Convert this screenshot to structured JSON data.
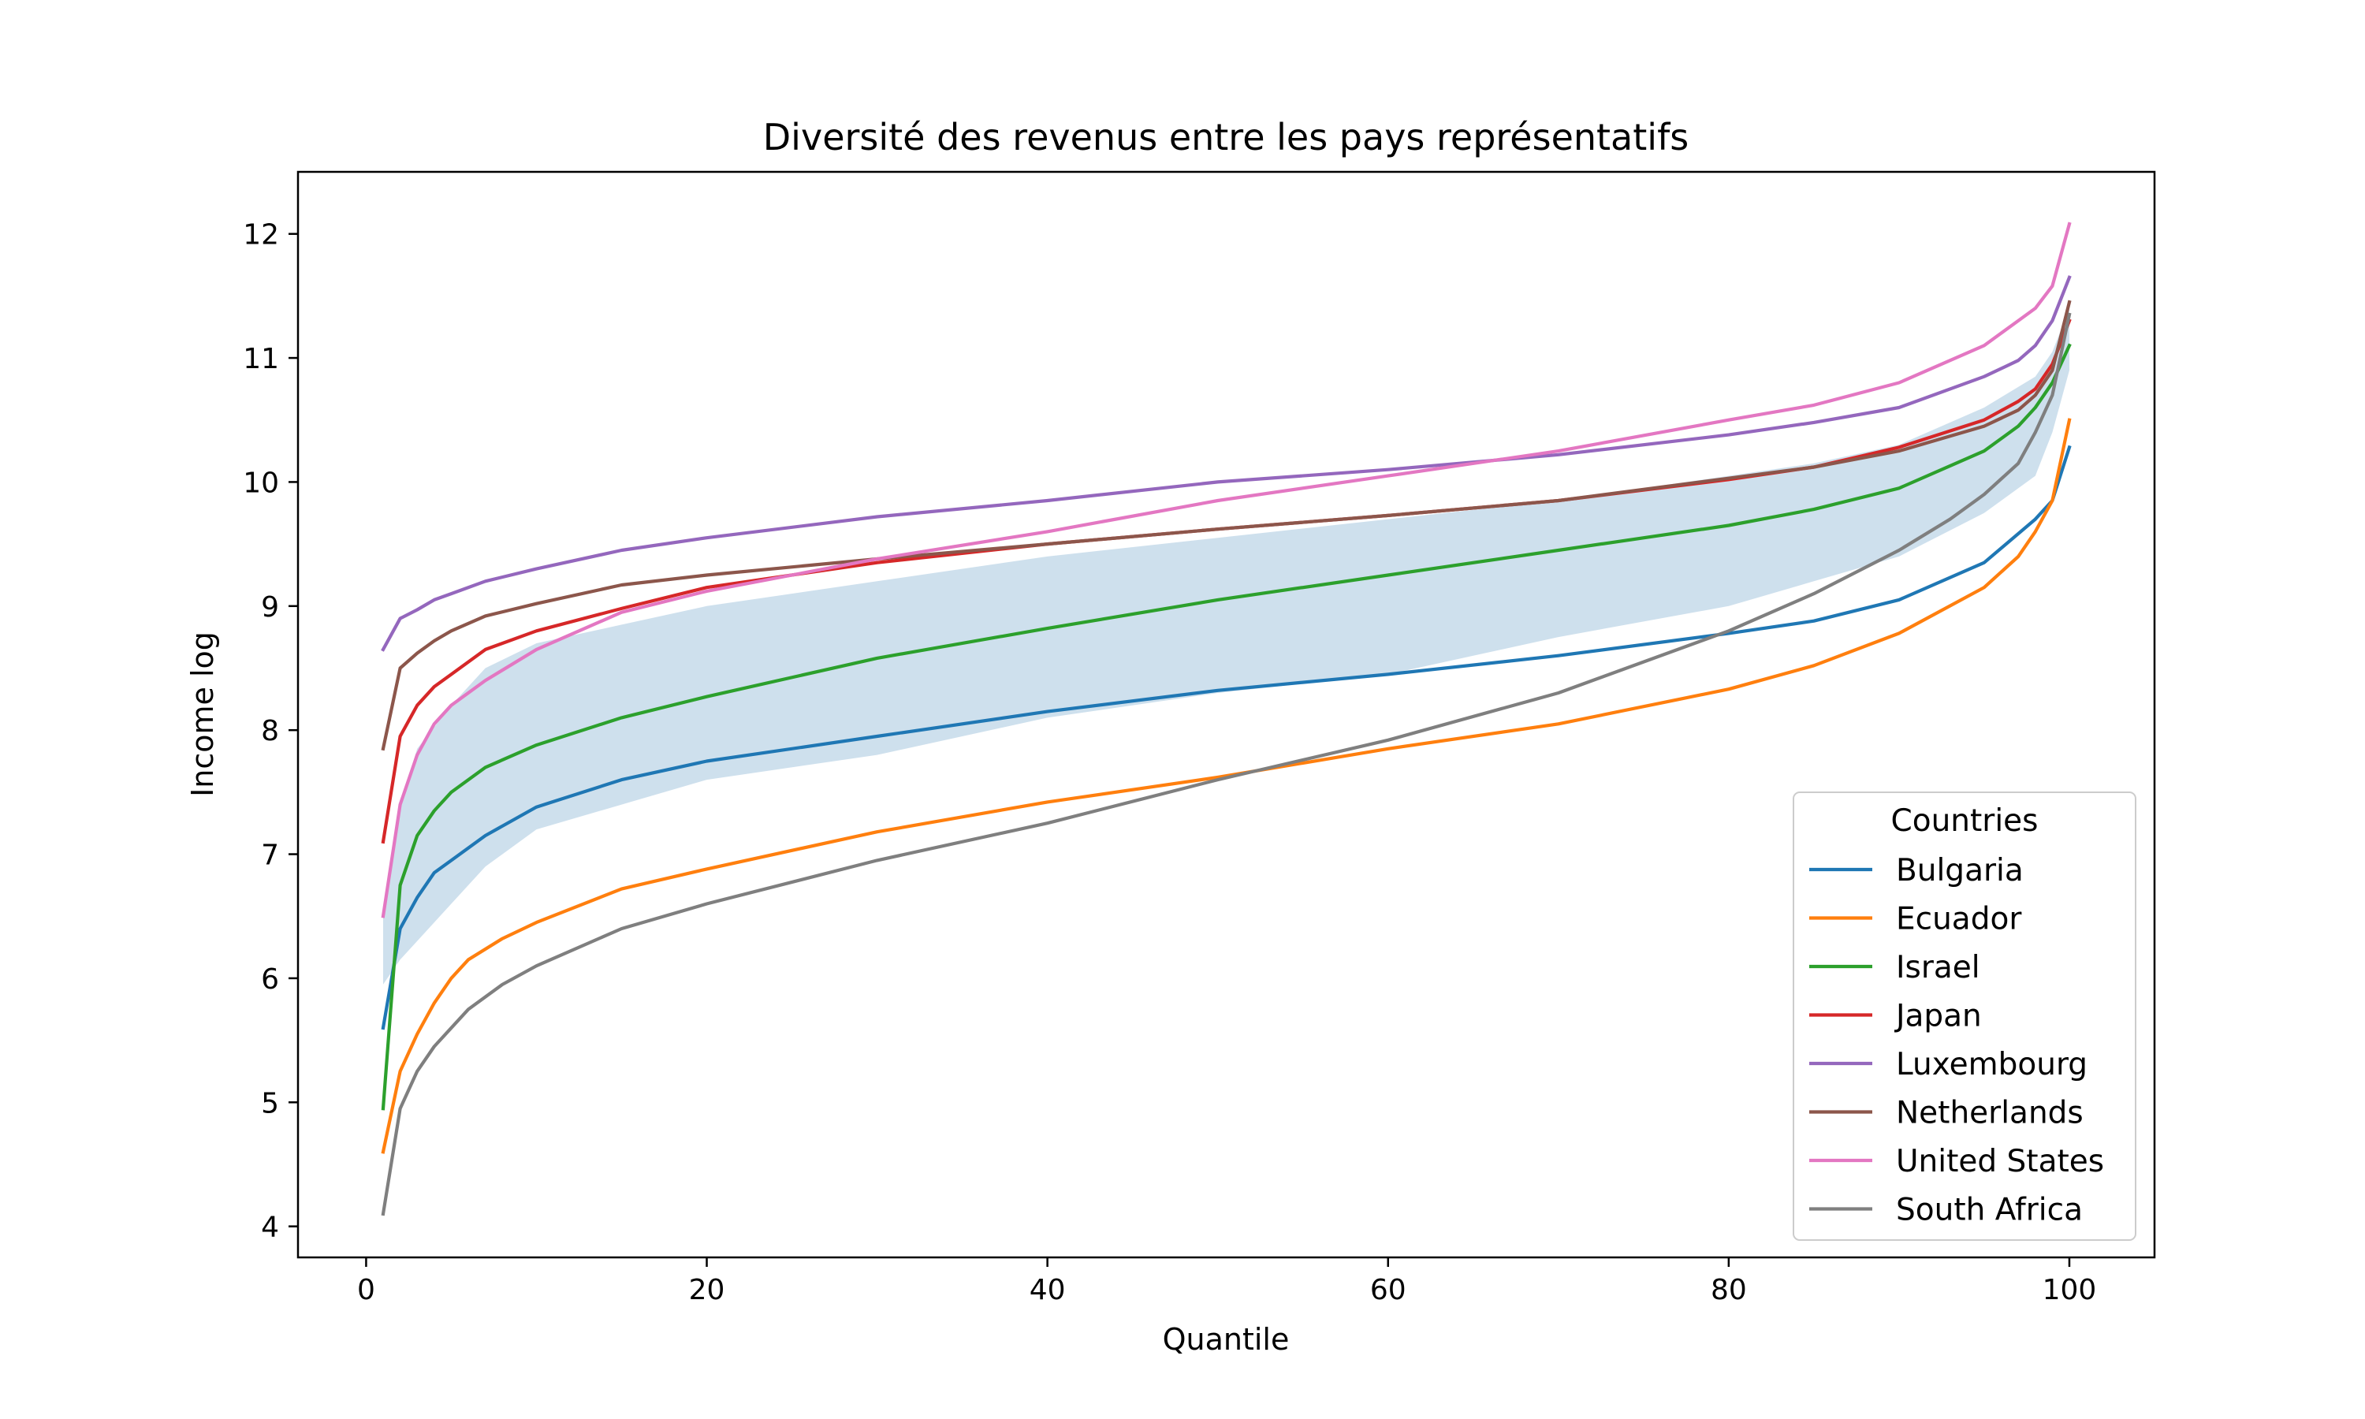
{
  "chart_data": {
    "type": "line",
    "title": "Diversité des revenus entre les pays représentatifs",
    "xlabel": "Quantile",
    "ylabel": "Income log",
    "xlim": [
      -4,
      105
    ],
    "ylim": [
      3.75,
      12.5
    ],
    "xticks": [
      0,
      20,
      40,
      60,
      80,
      100
    ],
    "yticks": [
      4,
      5,
      6,
      7,
      8,
      9,
      10,
      11,
      12
    ],
    "grid": false,
    "legend": {
      "title": "Countries",
      "placement": "lower-right"
    },
    "band": {
      "color": "#c6dbea",
      "x": [
        1,
        2,
        3,
        5,
        7,
        10,
        15,
        20,
        30,
        40,
        50,
        60,
        70,
        80,
        85,
        90,
        95,
        98,
        99,
        100
      ],
      "upper": [
        6.5,
        7.4,
        7.85,
        8.2,
        8.5,
        8.7,
        8.85,
        9.0,
        9.2,
        9.4,
        9.55,
        9.7,
        9.85,
        10.05,
        10.15,
        10.3,
        10.6,
        10.85,
        11.05,
        11.4
      ],
      "lower": [
        5.95,
        6.15,
        6.3,
        6.6,
        6.9,
        7.2,
        7.4,
        7.6,
        7.8,
        8.1,
        8.3,
        8.45,
        8.75,
        9.0,
        9.2,
        9.4,
        9.75,
        10.05,
        10.4,
        10.9
      ]
    },
    "series": [
      {
        "name": "Bulgaria",
        "color": "#1f77b4",
        "x": [
          1,
          2,
          3,
          4,
          5,
          7,
          10,
          15,
          20,
          30,
          40,
          50,
          60,
          70,
          80,
          85,
          90,
          95,
          98,
          99,
          100
        ],
        "y": [
          5.6,
          6.4,
          6.65,
          6.85,
          6.95,
          7.15,
          7.38,
          7.6,
          7.75,
          7.95,
          8.15,
          8.32,
          8.45,
          8.6,
          8.78,
          8.88,
          9.05,
          9.35,
          9.7,
          9.85,
          10.28
        ]
      },
      {
        "name": "Ecuador",
        "color": "#ff7f0e",
        "x": [
          1,
          2,
          3,
          4,
          5,
          6,
          8,
          10,
          15,
          20,
          30,
          40,
          50,
          60,
          70,
          80,
          85,
          90,
          95,
          97,
          98,
          99,
          100
        ],
        "y": [
          4.6,
          5.25,
          5.55,
          5.8,
          6.0,
          6.15,
          6.32,
          6.45,
          6.72,
          6.88,
          7.18,
          7.42,
          7.62,
          7.85,
          8.05,
          8.33,
          8.52,
          8.78,
          9.15,
          9.4,
          9.6,
          9.85,
          10.5
        ]
      },
      {
        "name": "Israel",
        "color": "#2ca02c",
        "x": [
          1,
          2,
          3,
          4,
          5,
          7,
          10,
          15,
          20,
          30,
          40,
          50,
          60,
          70,
          80,
          85,
          90,
          95,
          97,
          98,
          99,
          100
        ],
        "y": [
          4.95,
          6.75,
          7.15,
          7.35,
          7.5,
          7.7,
          7.88,
          8.1,
          8.27,
          8.58,
          8.82,
          9.05,
          9.25,
          9.45,
          9.65,
          9.78,
          9.95,
          10.25,
          10.45,
          10.6,
          10.8,
          11.1
        ]
      },
      {
        "name": "Japan",
        "color": "#d62728",
        "x": [
          1,
          2,
          3,
          4,
          5,
          7,
          10,
          15,
          20,
          30,
          40,
          50,
          60,
          70,
          80,
          85,
          90,
          95,
          97,
          98,
          99,
          100
        ],
        "y": [
          7.1,
          7.95,
          8.2,
          8.35,
          8.45,
          8.65,
          8.8,
          8.98,
          9.15,
          9.35,
          9.5,
          9.62,
          9.73,
          9.85,
          10.02,
          10.12,
          10.28,
          10.5,
          10.65,
          10.75,
          10.95,
          11.3
        ]
      },
      {
        "name": "Luxembourg",
        "color": "#9467bd",
        "x": [
          1,
          2,
          3,
          4,
          5,
          7,
          10,
          15,
          20,
          30,
          40,
          50,
          60,
          70,
          80,
          85,
          90,
          95,
          97,
          98,
          99,
          100
        ],
        "y": [
          8.65,
          8.9,
          8.97,
          9.05,
          9.1,
          9.2,
          9.3,
          9.45,
          9.55,
          9.72,
          9.85,
          10.0,
          10.1,
          10.22,
          10.38,
          10.48,
          10.6,
          10.85,
          10.98,
          11.1,
          11.3,
          11.65
        ]
      },
      {
        "name": "Netherlands",
        "color": "#8c564b",
        "x": [
          1,
          2,
          3,
          4,
          5,
          7,
          10,
          15,
          20,
          30,
          40,
          50,
          60,
          70,
          80,
          85,
          90,
          95,
          97,
          98,
          99,
          100
        ],
        "y": [
          7.85,
          8.5,
          8.62,
          8.72,
          8.8,
          8.92,
          9.02,
          9.17,
          9.25,
          9.38,
          9.5,
          9.62,
          9.73,
          9.85,
          10.03,
          10.12,
          10.25,
          10.45,
          10.58,
          10.7,
          10.9,
          11.45
        ]
      },
      {
        "name": "United States",
        "color": "#e377c2",
        "x": [
          1,
          2,
          3,
          4,
          5,
          7,
          10,
          15,
          20,
          30,
          40,
          50,
          60,
          70,
          80,
          85,
          90,
          95,
          97,
          98,
          99,
          100
        ],
        "y": [
          6.5,
          7.4,
          7.8,
          8.05,
          8.2,
          8.4,
          8.65,
          8.95,
          9.12,
          9.38,
          9.6,
          9.85,
          10.05,
          10.25,
          10.5,
          10.62,
          10.8,
          11.1,
          11.3,
          11.4,
          11.58,
          12.08
        ]
      },
      {
        "name": "South Africa",
        "color": "#7f7f7f",
        "x": [
          1,
          2,
          3,
          4,
          5,
          6,
          8,
          10,
          15,
          20,
          30,
          40,
          50,
          60,
          70,
          80,
          85,
          90,
          93,
          95,
          97,
          98,
          99,
          100
        ],
        "y": [
          4.1,
          4.95,
          5.25,
          5.45,
          5.6,
          5.75,
          5.95,
          6.1,
          6.4,
          6.6,
          6.95,
          7.25,
          7.6,
          7.92,
          8.3,
          8.8,
          9.1,
          9.45,
          9.7,
          9.9,
          10.15,
          10.4,
          10.7,
          11.35
        ]
      }
    ]
  }
}
